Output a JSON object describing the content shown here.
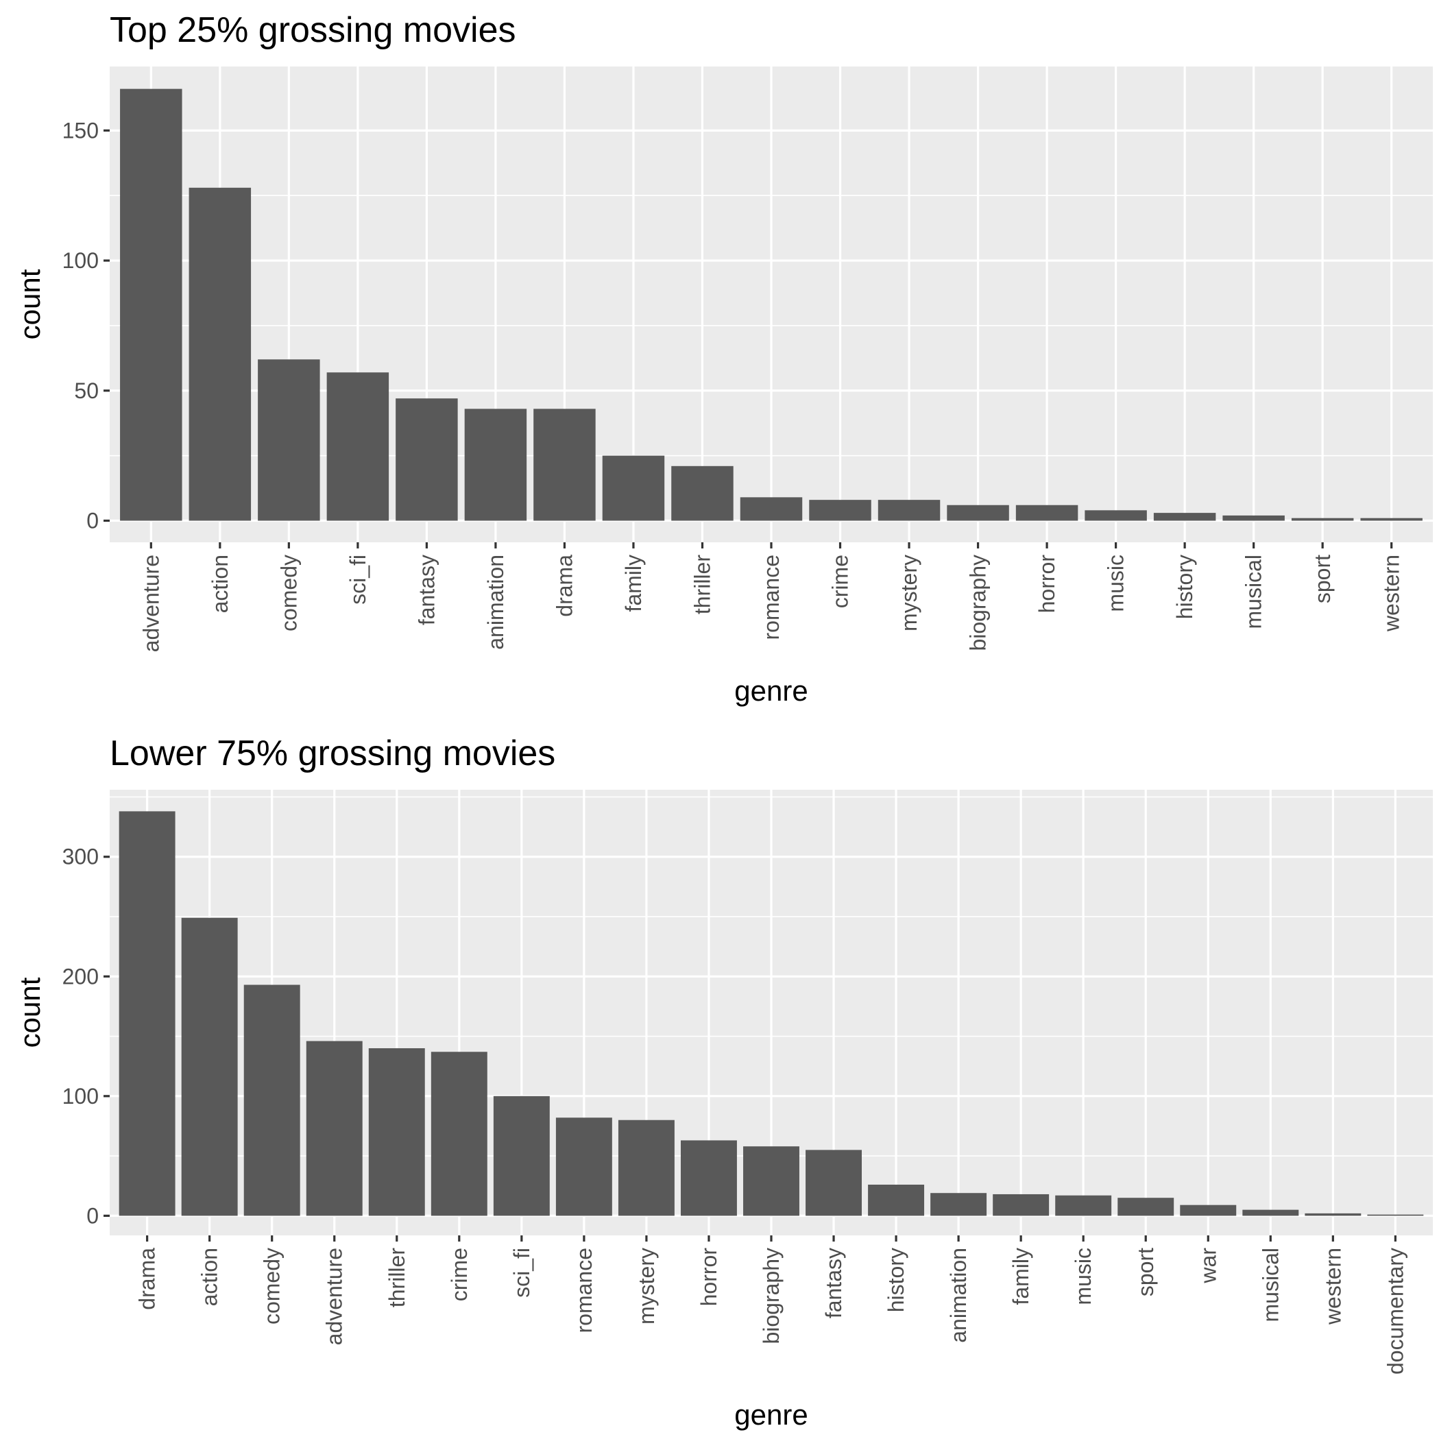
{
  "colors": {
    "bar": "#595959",
    "panel": "#ebebeb",
    "grid": "#ffffff",
    "tick_text": "#4d4d4d",
    "text": "#000000"
  },
  "chart_data": [
    {
      "type": "bar",
      "title": "Top 25% grossing movies",
      "xlabel": "genre",
      "ylabel": "count",
      "grid": true,
      "ylim": [
        -8.3,
        174.6
      ],
      "yticks": [
        0,
        50,
        100,
        150
      ],
      "categories": [
        "adventure",
        "action",
        "comedy",
        "sci_fi",
        "fantasy",
        "animation",
        "drama",
        "family",
        "thriller",
        "romance",
        "crime",
        "mystery",
        "biography",
        "horror",
        "music",
        "history",
        "musical",
        "sport",
        "western"
      ],
      "values": [
        166,
        128,
        62,
        57,
        47,
        43,
        43,
        25,
        21,
        9,
        8,
        8,
        6,
        6,
        4,
        3,
        2,
        1,
        1
      ]
    },
    {
      "type": "bar",
      "title": "Lower 75% grossing movies",
      "xlabel": "genre",
      "ylabel": "count",
      "grid": true,
      "ylim": [
        -16.4,
        356
      ],
      "yticks": [
        0,
        100,
        200,
        300
      ],
      "categories": [
        "drama",
        "action",
        "comedy",
        "adventure",
        "thriller",
        "crime",
        "sci_fi",
        "romance",
        "mystery",
        "horror",
        "biography",
        "fantasy",
        "history",
        "animation",
        "family",
        "music",
        "sport",
        "war",
        "musical",
        "western",
        "documentary"
      ],
      "values": [
        338,
        249,
        193,
        146,
        140,
        137,
        100,
        82,
        80,
        63,
        58,
        55,
        26,
        19,
        18,
        17,
        15,
        9,
        5,
        2,
        1
      ]
    }
  ]
}
